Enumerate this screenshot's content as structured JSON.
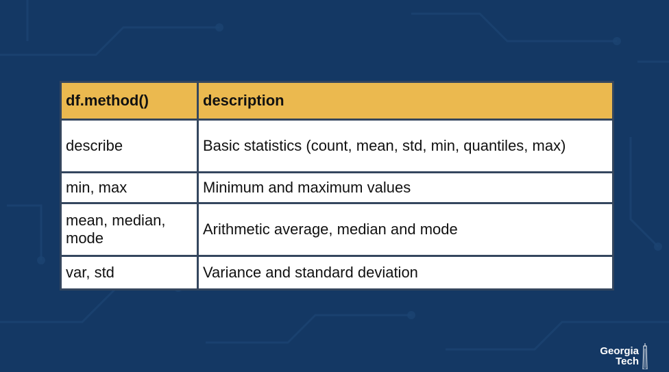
{
  "table": {
    "headers": [
      "df.method()",
      "description"
    ],
    "rows": [
      {
        "method": "describe",
        "description": "Basic statistics (count, mean, std, min, quantiles, max)"
      },
      {
        "method": "min, max",
        "description": "Minimum and maximum values"
      },
      {
        "method": "mean, median, mode",
        "description": "Arithmetic average, median and mode"
      },
      {
        "method": "var, std",
        "description": "Variance and standard deviation"
      }
    ]
  },
  "logo": {
    "line1": "Georgia",
    "line2": "Tech"
  },
  "colors": {
    "background": "#143864",
    "header": "#ebb94f",
    "cell": "#ffffff",
    "border": "#34465e"
  }
}
